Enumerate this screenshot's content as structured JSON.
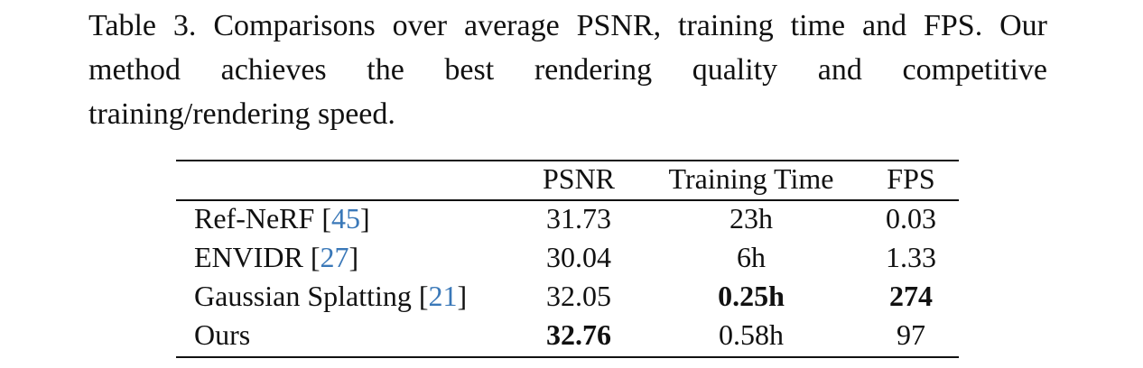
{
  "caption": "Table 3. Comparisons over average PSNR, training time and FPS. Our method achieves the best rendering quality and competitive training/rendering speed.",
  "table": {
    "header": [
      "PSNR",
      "Training Time",
      "FPS"
    ],
    "cite_color": "#3a78b8",
    "rows": [
      {
        "method": [
          "Ref-NeRF [",
          "45",
          "]"
        ],
        "cells": [
          {
            "text": "31.73",
            "bold": false
          },
          {
            "text": "23h",
            "bold": false
          },
          {
            "text": "0.03",
            "bold": false
          }
        ]
      },
      {
        "method": [
          "ENVIDR [",
          "27",
          "]"
        ],
        "cells": [
          {
            "text": "30.04",
            "bold": false
          },
          {
            "text": "6h",
            "bold": false
          },
          {
            "text": "1.33",
            "bold": false
          }
        ]
      },
      {
        "method": [
          "Gaussian Splatting [",
          "21",
          "]"
        ],
        "cells": [
          {
            "text": "32.05",
            "bold": false
          },
          {
            "text": "0.25h",
            "bold": true
          },
          {
            "text": "274",
            "bold": true
          }
        ]
      },
      {
        "method": [
          "Ours"
        ],
        "cells": [
          {
            "text": "32.76",
            "bold": true
          },
          {
            "text": "0.58h",
            "bold": false
          },
          {
            "text": "97",
            "bold": false
          }
        ]
      }
    ]
  }
}
